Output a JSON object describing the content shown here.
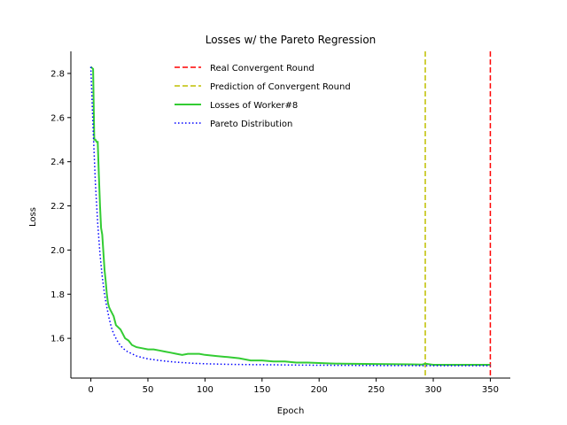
{
  "chart_data": {
    "type": "line",
    "title": "Losses w/ the Pareto Regression",
    "xlabel": "Epoch",
    "ylabel": "Loss",
    "xlim": [
      -17.5,
      367.5
    ],
    "ylim": [
      1.42,
      2.9
    ],
    "xticks": [
      0,
      50,
      100,
      150,
      200,
      250,
      300,
      350
    ],
    "yticks": [
      1.6,
      1.8,
      2.0,
      2.2,
      2.4,
      2.6,
      2.8
    ],
    "ytick_labels": [
      "1.6",
      "1.8",
      "2.0",
      "2.2",
      "2.4",
      "2.6",
      "2.8"
    ],
    "grid": false,
    "legend_position": "top-center",
    "series": [
      {
        "name": "Real Convergent Round",
        "style": "dashed",
        "color": "#ff0000",
        "kind": "vline",
        "x": 350
      },
      {
        "name": "Prediction of Convergent Round",
        "style": "dashed",
        "color": "#bfbf00",
        "kind": "vline",
        "x": 293
      },
      {
        "name": "Losses of Worker#8",
        "style": "solid",
        "color": "#33cc33",
        "kind": "line",
        "x": [
          0,
          2,
          3,
          4,
          5,
          6,
          7,
          8,
          9,
          10,
          11,
          12,
          13,
          14,
          15,
          16,
          17,
          18,
          20,
          22,
          24,
          26,
          28,
          30,
          33,
          36,
          40,
          45,
          50,
          55,
          60,
          65,
          70,
          75,
          80,
          85,
          90,
          95,
          100,
          110,
          120,
          130,
          140,
          150,
          160,
          170,
          180,
          190,
          200,
          210,
          220,
          240,
          260,
          280,
          290,
          293,
          300,
          320,
          340,
          350
        ],
        "values": [
          2.83,
          2.82,
          2.5,
          2.5,
          2.49,
          2.49,
          2.34,
          2.2,
          2.1,
          2.07,
          1.99,
          1.91,
          1.86,
          1.8,
          1.76,
          1.74,
          1.73,
          1.72,
          1.7,
          1.66,
          1.65,
          1.64,
          1.62,
          1.6,
          1.59,
          1.57,
          1.56,
          1.555,
          1.55,
          1.55,
          1.545,
          1.54,
          1.535,
          1.53,
          1.525,
          1.53,
          1.53,
          1.53,
          1.525,
          1.52,
          1.515,
          1.51,
          1.5,
          1.5,
          1.495,
          1.495,
          1.49,
          1.49,
          1.488,
          1.486,
          1.485,
          1.484,
          1.483,
          1.482,
          1.481,
          1.485,
          1.48,
          1.48,
          1.48,
          1.48
        ]
      },
      {
        "name": "Pareto Distribution",
        "style": "dotted",
        "color": "#0000ff",
        "kind": "line",
        "x": [
          0,
          2,
          4,
          6,
          8,
          10,
          12,
          14,
          16,
          18,
          20,
          24,
          28,
          32,
          36,
          40,
          45,
          50,
          60,
          70,
          80,
          90,
          100,
          120,
          140,
          160,
          180,
          200,
          250,
          300,
          350
        ],
        "values": [
          2.83,
          2.55,
          2.3,
          2.12,
          1.98,
          1.88,
          1.8,
          1.74,
          1.69,
          1.65,
          1.62,
          1.58,
          1.555,
          1.54,
          1.53,
          1.52,
          1.513,
          1.507,
          1.5,
          1.494,
          1.49,
          1.487,
          1.485,
          1.482,
          1.481,
          1.48,
          1.479,
          1.478,
          1.477,
          1.476,
          1.476
        ]
      }
    ]
  }
}
